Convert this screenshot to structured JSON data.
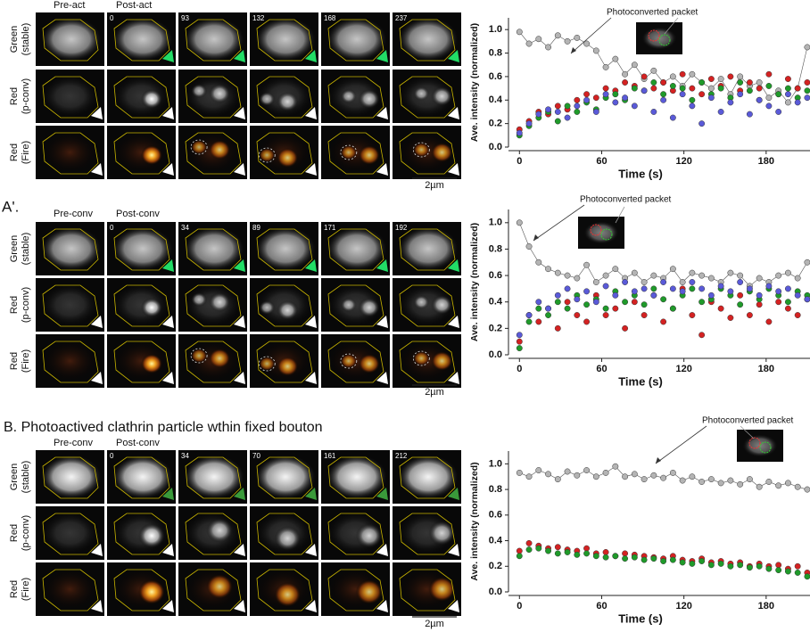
{
  "panels": [
    {
      "col_labels": [
        "Pre-act",
        "Post-act"
      ],
      "frames": [
        0,
        93,
        132,
        168,
        237
      ],
      "row_labels": [
        [
          "Green",
          "(stable)"
        ],
        [
          "Red",
          "(p-conv)"
        ],
        [
          "Red",
          "(Fire)"
        ]
      ],
      "scale": "2µm"
    },
    {
      "label": "A'.",
      "col_labels": [
        "Pre-conv",
        "Post-conv"
      ],
      "frames": [
        0,
        34,
        89,
        171,
        192
      ],
      "row_labels": [
        [
          "Green",
          "(stable)"
        ],
        [
          "Red",
          "(p-conv)"
        ],
        [
          "Red",
          "(Fire)"
        ]
      ],
      "scale": "2µm"
    },
    {
      "label": "B. Photoactived clathrin particle wthin fixed bouton",
      "col_labels": [
        "Pre-conv",
        "Post-conv"
      ],
      "frames": [
        0,
        34,
        70,
        161,
        212
      ],
      "row_labels": [
        [
          "Green",
          "(stable)"
        ],
        [
          "Red",
          "(p-conv)"
        ],
        [
          "Red",
          "(Fire)"
        ]
      ],
      "scale": "2µm"
    }
  ],
  "chart_data": [
    {
      "type": "scatter",
      "annotation": "Photoconverted packet",
      "ylabel": "Ave. intensity (normalized)",
      "xlabel": "Time (s)",
      "xlim": [
        -8,
        212
      ],
      "ylim": [
        0,
        1.1
      ],
      "xticks": [
        0,
        60,
        120,
        180
      ],
      "yticks": [
        {
          "value": 0,
          "label": "0.0"
        },
        0.2,
        0.4,
        0.6,
        0.8,
        {
          "value": 1,
          "label": "1.0"
        }
      ],
      "x": [
        0,
        7,
        14,
        21,
        28,
        35,
        42,
        49,
        56,
        63,
        70,
        77,
        84,
        91,
        98,
        105,
        112,
        119,
        126,
        133,
        140,
        147,
        154,
        161,
        168,
        175,
        182,
        189,
        196,
        203,
        210
      ],
      "series": [
        {
          "color": "#b4b4b4",
          "connected": true,
          "values": [
            0.98,
            0.88,
            0.92,
            0.85,
            0.95,
            0.9,
            0.93,
            0.88,
            0.82,
            0.68,
            0.75,
            0.62,
            0.7,
            0.58,
            0.65,
            0.55,
            0.6,
            0.52,
            0.62,
            0.55,
            0.5,
            0.58,
            0.45,
            0.6,
            0.52,
            0.55,
            0.42,
            0.48,
            0.38,
            0.5,
            0.85
          ]
        },
        {
          "color": "#d42222",
          "values": [
            0.15,
            0.22,
            0.3,
            0.28,
            0.35,
            0.32,
            0.4,
            0.45,
            0.42,
            0.5,
            0.48,
            0.55,
            0.52,
            0.6,
            0.5,
            0.55,
            0.48,
            0.62,
            0.5,
            0.45,
            0.58,
            0.52,
            0.6,
            0.48,
            0.55,
            0.5,
            0.62,
            0.45,
            0.58,
            0.5,
            0.55
          ]
        },
        {
          "color": "#1f9a2a",
          "values": [
            0.1,
            0.18,
            0.25,
            0.3,
            0.22,
            0.35,
            0.3,
            0.38,
            0.32,
            0.42,
            0.45,
            0.4,
            0.5,
            0.48,
            0.55,
            0.45,
            0.52,
            0.5,
            0.4,
            0.55,
            0.45,
            0.5,
            0.42,
            0.55,
            0.48,
            0.4,
            0.52,
            0.45,
            0.5,
            0.42,
            0.48
          ]
        },
        {
          "color": "#5a5ad8",
          "values": [
            0.12,
            0.2,
            0.28,
            0.32,
            0.3,
            0.25,
            0.35,
            0.4,
            0.3,
            0.45,
            0.38,
            0.42,
            0.35,
            0.48,
            0.3,
            0.4,
            0.25,
            0.45,
            0.35,
            0.2,
            0.42,
            0.3,
            0.38,
            0.45,
            0.28,
            0.4,
            0.35,
            0.3,
            0.45,
            0.38,
            0.42
          ]
        }
      ]
    },
    {
      "type": "scatter",
      "annotation": "Photoconverted packet",
      "ylabel": "Ave. intensity (normalized)",
      "xlabel": "Time (s)",
      "xlim": [
        -8,
        212
      ],
      "ylim": [
        0,
        1.1
      ],
      "xticks": [
        0,
        60,
        120,
        180
      ],
      "yticks": [
        {
          "value": 0,
          "label": "0.0"
        },
        0.2,
        0.4,
        0.6,
        0.8,
        {
          "value": 1,
          "label": "1.0"
        }
      ],
      "x": [
        0,
        7,
        14,
        21,
        28,
        35,
        42,
        49,
        56,
        63,
        70,
        77,
        84,
        91,
        98,
        105,
        112,
        119,
        126,
        133,
        140,
        147,
        154,
        161,
        168,
        175,
        182,
        189,
        196,
        203,
        210
      ],
      "series": [
        {
          "color": "#b4b4b4",
          "connected": true,
          "values": [
            1.0,
            0.82,
            0.7,
            0.65,
            0.62,
            0.6,
            0.58,
            0.68,
            0.55,
            0.6,
            0.65,
            0.58,
            0.62,
            0.55,
            0.6,
            0.58,
            0.65,
            0.55,
            0.62,
            0.6,
            0.58,
            0.55,
            0.62,
            0.6,
            0.52,
            0.58,
            0.55,
            0.6,
            0.62,
            0.58,
            0.7
          ]
        },
        {
          "color": "#d42222",
          "values": [
            0.1,
            0.3,
            0.25,
            0.35,
            0.2,
            0.4,
            0.3,
            0.25,
            0.45,
            0.3,
            0.35,
            0.2,
            0.4,
            0.3,
            0.45,
            0.25,
            0.35,
            0.5,
            0.3,
            0.15,
            0.4,
            0.35,
            0.28,
            0.45,
            0.3,
            0.38,
            0.25,
            0.4,
            0.35,
            0.3,
            0.42
          ]
        },
        {
          "color": "#1f9a2a",
          "values": [
            0.05,
            0.25,
            0.35,
            0.3,
            0.4,
            0.35,
            0.45,
            0.38,
            0.42,
            0.35,
            0.48,
            0.4,
            0.45,
            0.38,
            0.5,
            0.42,
            0.35,
            0.45,
            0.5,
            0.4,
            0.42,
            0.5,
            0.45,
            0.38,
            0.48,
            0.42,
            0.5,
            0.45,
            0.4,
            0.48,
            0.45
          ]
        },
        {
          "color": "#5a5ad8",
          "values": [
            0.15,
            0.3,
            0.4,
            0.35,
            0.45,
            0.5,
            0.42,
            0.48,
            0.4,
            0.52,
            0.45,
            0.55,
            0.48,
            0.5,
            0.45,
            0.55,
            0.5,
            0.48,
            0.55,
            0.5,
            0.45,
            0.52,
            0.48,
            0.55,
            0.5,
            0.45,
            0.52,
            0.48,
            0.5,
            0.45,
            0.42
          ]
        }
      ]
    },
    {
      "type": "scatter",
      "annotation": "Photoconverted packet",
      "ylabel": "Ave. intensity (normalized)",
      "xlabel": "Time (s)",
      "xlim": [
        -8,
        212
      ],
      "ylim": [
        0,
        1.1
      ],
      "xticks": [
        0,
        60,
        120,
        180
      ],
      "yticks": [
        {
          "value": 0,
          "label": "0.0"
        },
        0.2,
        0.4,
        0.6,
        0.8,
        {
          "value": 1,
          "label": "1.0"
        }
      ],
      "x": [
        0,
        7,
        14,
        21,
        28,
        35,
        42,
        49,
        56,
        63,
        70,
        77,
        84,
        91,
        98,
        105,
        112,
        119,
        126,
        133,
        140,
        147,
        154,
        161,
        168,
        175,
        182,
        189,
        196,
        203,
        210
      ],
      "series": [
        {
          "color": "#b4b4b4",
          "connected": true,
          "values": [
            0.93,
            0.9,
            0.95,
            0.92,
            0.88,
            0.94,
            0.91,
            0.95,
            0.9,
            0.93,
            0.98,
            0.9,
            0.92,
            0.88,
            0.91,
            0.89,
            0.93,
            0.87,
            0.9,
            0.86,
            0.88,
            0.85,
            0.87,
            0.84,
            0.88,
            0.82,
            0.86,
            0.83,
            0.85,
            0.82,
            0.8
          ]
        },
        {
          "color": "#d42222",
          "values": [
            0.32,
            0.38,
            0.36,
            0.34,
            0.35,
            0.33,
            0.32,
            0.34,
            0.3,
            0.31,
            0.28,
            0.3,
            0.29,
            0.28,
            0.27,
            0.26,
            0.28,
            0.25,
            0.24,
            0.26,
            0.23,
            0.24,
            0.22,
            0.23,
            0.2,
            0.22,
            0.2,
            0.21,
            0.18,
            0.2,
            0.15
          ]
        },
        {
          "color": "#1f9a2a",
          "values": [
            0.28,
            0.33,
            0.34,
            0.32,
            0.3,
            0.31,
            0.29,
            0.3,
            0.28,
            0.27,
            0.28,
            0.26,
            0.27,
            0.25,
            0.26,
            0.24,
            0.25,
            0.23,
            0.22,
            0.24,
            0.21,
            0.22,
            0.2,
            0.21,
            0.19,
            0.2,
            0.18,
            0.17,
            0.16,
            0.15,
            0.12
          ]
        }
      ]
    }
  ]
}
